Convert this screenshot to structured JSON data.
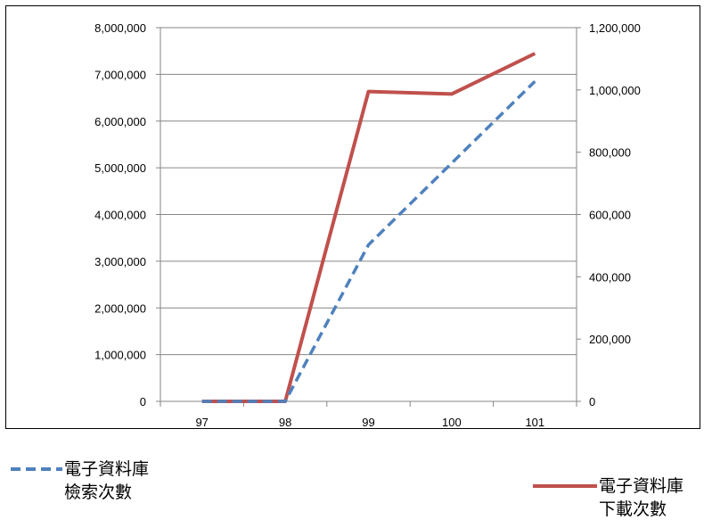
{
  "chart_data": {
    "type": "line",
    "categories": [
      "97",
      "98",
      "99",
      "100",
      "101"
    ],
    "y_left": {
      "ylim": [
        0,
        8000000
      ],
      "ticks": [
        "0",
        "1,000,000",
        "2,000,000",
        "3,000,000",
        "4,000,000",
        "5,000,000",
        "6,000,000",
        "7,000,000",
        "8,000,000"
      ]
    },
    "y_right": {
      "ylim": [
        0,
        1200000
      ],
      "ticks": [
        "0",
        "200,000",
        "400,000",
        "600,000",
        "800,000",
        "1,000,000",
        "1,200,000"
      ]
    },
    "series": [
      {
        "name_line1": "電子資料庫",
        "name_line2": "檢索次數",
        "axis": "left",
        "style": "dashed",
        "color": "#4F81BD",
        "values": [
          0,
          0,
          3350000,
          5100000,
          6850000
        ]
      },
      {
        "name_line1": "電子資料庫",
        "name_line2": "下載次數",
        "axis": "right",
        "style": "solid",
        "color": "#C0504D",
        "values": [
          0,
          0,
          995000,
          987000,
          1117000
        ]
      }
    ],
    "grid": true,
    "legend_position": "bottom"
  }
}
